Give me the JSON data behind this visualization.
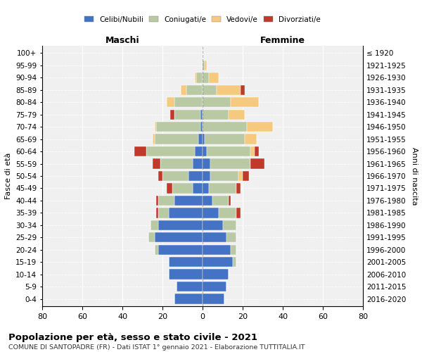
{
  "age_groups": [
    "0-4",
    "5-9",
    "10-14",
    "15-19",
    "20-24",
    "25-29",
    "30-34",
    "35-39",
    "40-44",
    "45-49",
    "50-54",
    "55-59",
    "60-64",
    "65-69",
    "70-74",
    "75-79",
    "80-84",
    "85-89",
    "90-94",
    "95-99",
    "100+"
  ],
  "birth_years": [
    "2016-2020",
    "2011-2015",
    "2006-2010",
    "2001-2005",
    "1996-2000",
    "1991-1995",
    "1986-1990",
    "1981-1985",
    "1976-1980",
    "1971-1975",
    "1966-1970",
    "1961-1965",
    "1956-1960",
    "1951-1955",
    "1946-1950",
    "1941-1945",
    "1936-1940",
    "1931-1935",
    "1926-1930",
    "1921-1925",
    "≤ 1920"
  ],
  "maschi": {
    "celibi": [
      14,
      13,
      17,
      17,
      22,
      24,
      22,
      17,
      14,
      5,
      7,
      5,
      4,
      2,
      1,
      1,
      0,
      0,
      0,
      0,
      0
    ],
    "coniugati": [
      0,
      0,
      0,
      0,
      2,
      3,
      4,
      5,
      8,
      10,
      13,
      16,
      24,
      22,
      22,
      13,
      14,
      8,
      3,
      0,
      0
    ],
    "vedovi": [
      0,
      0,
      0,
      0,
      0,
      0,
      0,
      0,
      0,
      0,
      0,
      0,
      0,
      1,
      1,
      0,
      4,
      3,
      1,
      0,
      0
    ],
    "divorziati": [
      0,
      0,
      0,
      0,
      0,
      0,
      0,
      1,
      1,
      3,
      2,
      4,
      6,
      0,
      0,
      2,
      0,
      0,
      0,
      0,
      0
    ]
  },
  "femmine": {
    "nubili": [
      11,
      12,
      13,
      15,
      14,
      12,
      10,
      8,
      5,
      3,
      4,
      4,
      2,
      1,
      0,
      0,
      0,
      0,
      0,
      0,
      0
    ],
    "coniugate": [
      0,
      0,
      0,
      2,
      3,
      5,
      7,
      9,
      8,
      14,
      14,
      20,
      22,
      20,
      22,
      13,
      14,
      7,
      3,
      1,
      0
    ],
    "vedove": [
      0,
      0,
      0,
      0,
      0,
      0,
      0,
      0,
      0,
      0,
      2,
      0,
      2,
      6,
      13,
      8,
      14,
      12,
      5,
      1,
      0
    ],
    "divorziate": [
      0,
      0,
      0,
      0,
      0,
      0,
      0,
      2,
      1,
      2,
      3,
      7,
      2,
      0,
      0,
      0,
      0,
      2,
      0,
      0,
      0
    ]
  },
  "colors": {
    "celibi": "#4472c4",
    "coniugati": "#b8c9a3",
    "vedovi": "#f5c97e",
    "divorziati": "#c0392b"
  },
  "xlim": 80,
  "title": "Popolazione per età, sesso e stato civile - 2021",
  "subtitle": "COMUNE DI SANTOPADRE (FR) - Dati ISTAT 1° gennaio 2021 - Elaborazione TUTTITALIA.IT",
  "xlabel_left": "Maschi",
  "xlabel_right": "Femmine",
  "ylabel_left": "Fasce di età",
  "ylabel_right": "Anni di nascita"
}
